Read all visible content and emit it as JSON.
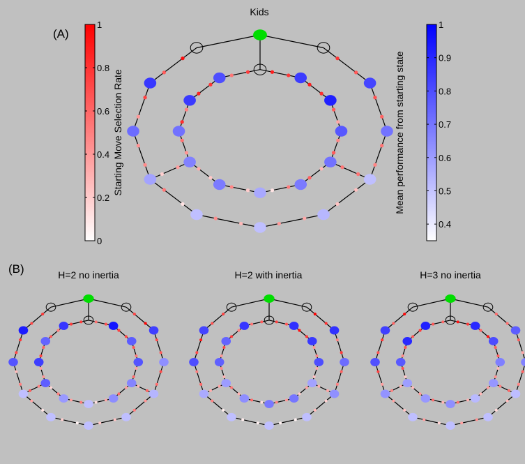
{
  "panel_a": {
    "label": "(A)",
    "title": "Kids",
    "colorbar_left": {
      "label": "Starting Move Selection Rate",
      "ticks": [
        "0",
        "0.2",
        "0.4",
        "0.6",
        "0.8",
        "1"
      ],
      "tick_values": [
        0,
        0.2,
        0.4,
        0.6,
        0.8,
        1
      ],
      "range": [
        0,
        1
      ],
      "color_low": "#ffffff",
      "color_high": "#ff0000"
    },
    "colorbar_right": {
      "label": "Mean performance from starting state",
      "ticks": [
        "0.4",
        "0.5",
        "0.6",
        "0.7",
        "0.8",
        "0.9",
        "1"
      ],
      "tick_values": [
        0.4,
        0.5,
        0.6,
        0.7,
        0.8,
        0.9,
        1
      ],
      "range": [
        0.35,
        1
      ],
      "color_low": "#ffffff",
      "color_high": "#0000ff"
    }
  },
  "panel_b": {
    "label": "(B)",
    "subplots": [
      {
        "title": "H=2 no inertia"
      },
      {
        "title": "H=2 with inertia"
      },
      {
        "title": "H=3 no inertia"
      }
    ]
  },
  "colors": {
    "background": "#c0c0c0",
    "goal_node": "#00dd00",
    "edge": "#000000",
    "move_high": "#ff0000",
    "perf_high": "#0000ff"
  }
}
